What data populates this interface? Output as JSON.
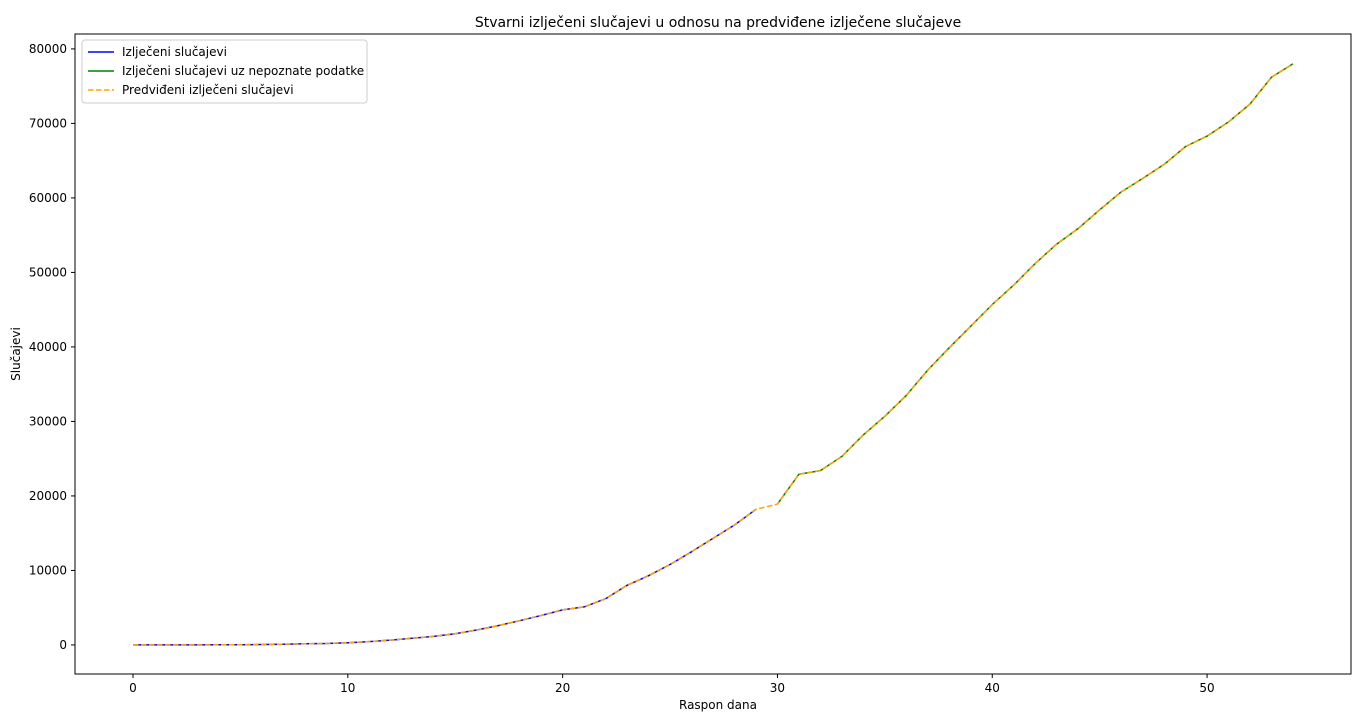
{
  "chart_data": {
    "type": "line",
    "title": "Stvarni izlječeni slučajevi u odnosu na predviđene izlječene slučajeve",
    "xlabel": "Raspon dana",
    "ylabel": "Slučajevi",
    "xlim": [
      -2.7,
      56.7
    ],
    "ylim": [
      -3900,
      82000
    ],
    "xticks": [
      0,
      10,
      20,
      30,
      40,
      50
    ],
    "yticks": [
      0,
      10000,
      20000,
      30000,
      40000,
      50000,
      60000,
      70000,
      80000
    ],
    "grid": false,
    "legend_position": "upper left",
    "series": [
      {
        "name": "Izlječeni slučajevi",
        "color": "#0000ff",
        "style": "solid",
        "x": [
          0,
          1,
          2,
          3,
          4,
          5,
          6,
          7,
          8,
          9,
          10,
          11,
          12,
          13,
          14,
          15,
          16,
          17,
          18,
          19,
          20,
          21,
          22,
          23,
          24,
          25,
          26,
          27,
          28,
          29
        ],
        "values": [
          0,
          0,
          0,
          10,
          20,
          30,
          60,
          100,
          150,
          200,
          300,
          450,
          650,
          900,
          1150,
          1500,
          2000,
          2600,
          3250,
          3950,
          4700,
          5100,
          6200,
          8000,
          9300,
          10800,
          12500,
          14300,
          16100,
          18200
        ]
      },
      {
        "name": "Izlječeni slučajevi uz nepoznate podatke",
        "color": "#008000",
        "style": "solid",
        "x": [
          30,
          31,
          32,
          33,
          34,
          35,
          36,
          37,
          38,
          39,
          40,
          41,
          42,
          43,
          44,
          45,
          46,
          47,
          48,
          49,
          50,
          51,
          52,
          53,
          54
        ],
        "values": [
          18900,
          22900,
          23400,
          25300,
          28200,
          30700,
          33500,
          36900,
          39900,
          42800,
          45700,
          48300,
          51200,
          53800,
          55900,
          58400,
          60800,
          62600,
          64500,
          66900,
          68300,
          70200,
          72600,
          76200,
          78000
        ]
      },
      {
        "name": "Predviđeni izlječeni slučajevi",
        "color": "#ffa500",
        "style": "dashed",
        "x": [
          0,
          1,
          2,
          3,
          4,
          5,
          6,
          7,
          8,
          9,
          10,
          11,
          12,
          13,
          14,
          15,
          16,
          17,
          18,
          19,
          20,
          21,
          22,
          23,
          24,
          25,
          26,
          27,
          28,
          29,
          30,
          31,
          32,
          33,
          34,
          35,
          36,
          37,
          38,
          39,
          40,
          41,
          42,
          43,
          44,
          45,
          46,
          47,
          48,
          49,
          50,
          51,
          52,
          53,
          54
        ],
        "values": [
          0,
          0,
          0,
          10,
          20,
          30,
          60,
          100,
          150,
          200,
          300,
          450,
          650,
          900,
          1150,
          1500,
          2000,
          2600,
          3250,
          3950,
          4700,
          5100,
          6200,
          8000,
          9300,
          10800,
          12500,
          14300,
          16100,
          18200,
          18900,
          22900,
          23400,
          25300,
          28200,
          30700,
          33500,
          36900,
          39900,
          42800,
          45700,
          48300,
          51200,
          53800,
          55900,
          58400,
          60800,
          62600,
          64500,
          66900,
          68300,
          70200,
          72600,
          76200,
          78000
        ]
      }
    ]
  }
}
